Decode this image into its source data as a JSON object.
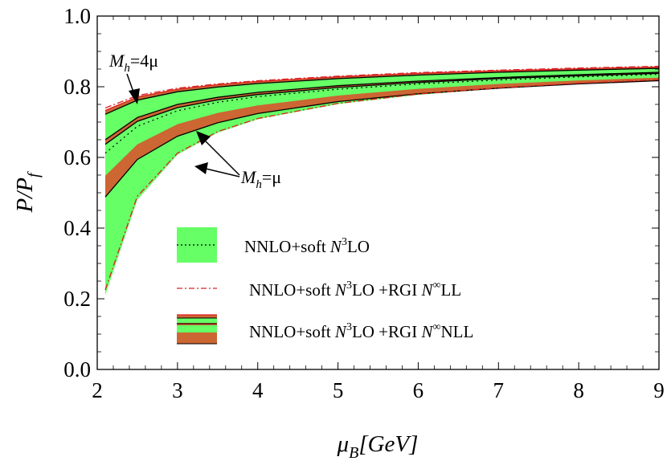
{
  "chart_data": {
    "type": "area",
    "title": "",
    "xlabel": {
      "main": "μ",
      "sub": "B",
      "rest": "[GeV]"
    },
    "ylabel": {
      "main": "P/P",
      "sub": "f"
    },
    "xlim": [
      2,
      9
    ],
    "ylim": [
      0,
      1
    ],
    "xticks": [
      2,
      3,
      4,
      5,
      6,
      7,
      8,
      9
    ],
    "yticks": [
      0.0,
      0.2,
      0.4,
      0.6,
      0.8,
      1.0
    ],
    "xtick_labels": [
      "2",
      "3",
      "4",
      "5",
      "6",
      "7",
      "8",
      "9"
    ],
    "ytick_labels": [
      "0.0",
      "0.2",
      "0.4",
      "0.6",
      "0.8",
      "1.0"
    ],
    "x": [
      2.1,
      2.5,
      3,
      3.5,
      4,
      5,
      6,
      7,
      8,
      9
    ],
    "series": [
      {
        "id": "green-upper",
        "values": [
          0.728,
          0.768,
          0.79,
          0.802,
          0.811,
          0.824,
          0.834,
          0.842,
          0.848,
          0.853
        ]
      },
      {
        "id": "green-lower",
        "values": [
          0.21,
          0.48,
          0.608,
          0.67,
          0.708,
          0.751,
          0.777,
          0.795,
          0.808,
          0.818
        ]
      },
      {
        "id": "nnlo-central",
        "values": [
          0.612,
          0.688,
          0.732,
          0.756,
          0.772,
          0.793,
          0.808,
          0.819,
          0.828,
          0.835
        ]
      },
      {
        "id": "rgi-ll-upper",
        "values": [
          0.74,
          0.775,
          0.796,
          0.808,
          0.817,
          0.83,
          0.84,
          0.847,
          0.853,
          0.858
        ]
      },
      {
        "id": "rgi-ll-lower",
        "values": [
          0.225,
          0.49,
          0.612,
          0.673,
          0.71,
          0.753,
          0.779,
          0.797,
          0.81,
          0.82
        ]
      },
      {
        "id": "rgi-nll-upper-1",
        "values": [
          0.733,
          0.771,
          0.793,
          0.806,
          0.815,
          0.828,
          0.838,
          0.845,
          0.851,
          0.856
        ]
      },
      {
        "id": "rgi-nll-upper-2",
        "values": [
          0.722,
          0.762,
          0.786,
          0.799,
          0.809,
          0.823,
          0.833,
          0.841,
          0.847,
          0.852
        ]
      },
      {
        "id": "rgi-nll-inner-1",
        "values": [
          0.65,
          0.713,
          0.75,
          0.77,
          0.784,
          0.803,
          0.816,
          0.826,
          0.834,
          0.841
        ]
      },
      {
        "id": "rgi-nll-inner-2",
        "values": [
          0.637,
          0.702,
          0.741,
          0.763,
          0.778,
          0.798,
          0.812,
          0.823,
          0.831,
          0.838
        ]
      },
      {
        "id": "rgi-nll-lower-1",
        "values": [
          0.548,
          0.637,
          0.694,
          0.726,
          0.747,
          0.775,
          0.794,
          0.808,
          0.818,
          0.826
        ]
      },
      {
        "id": "rgi-nll-lower-2",
        "values": [
          0.488,
          0.594,
          0.66,
          0.698,
          0.724,
          0.758,
          0.78,
          0.796,
          0.808,
          0.817
        ]
      }
    ],
    "annotations": [
      {
        "id": "mh-4mu",
        "lhs": "M",
        "sub": "h",
        "rhs": "=4μ"
      },
      {
        "id": "mh-mu",
        "lhs": "M",
        "sub": "h",
        "rhs": "=μ"
      }
    ],
    "legend": {
      "placement": "lower-center",
      "entries": [
        {
          "prefix": "NNLO+soft ",
          "N": "N",
          "sup": "3",
          "suffix": "LO"
        },
        {
          "prefix": "NNLO+soft ",
          "N": "N",
          "sup": "3",
          "mid": "LO +RGI ",
          "N2": "N",
          "sup2": "∞",
          "suffix": "LL"
        },
        {
          "prefix": "NNLO+soft ",
          "N": "N",
          "sup": "3",
          "mid": "LO +RGI ",
          "N2": "N",
          "sup2": "∞",
          "suffix": "NLL"
        }
      ]
    },
    "colors": {
      "green_band": "#66ff66",
      "orange_band": "#cc6633",
      "red_dashdot": "#dd2222",
      "black": "#000000"
    }
  }
}
